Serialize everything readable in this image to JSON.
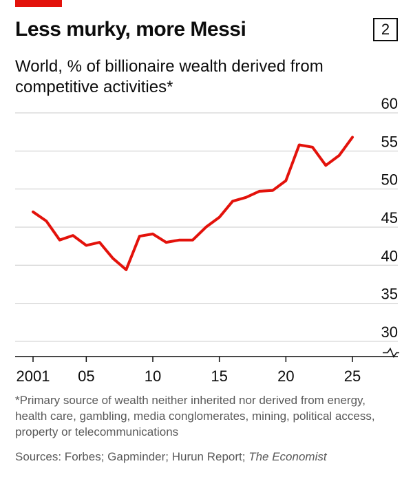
{
  "header": {
    "title": "Less murky, more Messi",
    "figure_number": "2",
    "subtitle": "World, % of billionaire wealth derived from competitive activities*"
  },
  "footer": {
    "footnote": "*Primary source of wealth neither inherited nor derived from energy, health care, gambling, media conglomerates, mining, political access, property or telecommunications",
    "sources_prefix": "Sources: Forbes; Gapminder; Hurun Report; ",
    "sources_publication": "The Economist"
  },
  "colors": {
    "line": "#e3120b",
    "grid": "#c9c9c9",
    "axis": "#0c0c0c",
    "accent": "#e3120b"
  },
  "chart_data": {
    "type": "line",
    "title": "Less murky, more Messi",
    "subtitle": "World, % of billionaire wealth derived from competitive activities*",
    "xlabel": "",
    "ylabel": "",
    "x": [
      2001,
      2002,
      2003,
      2004,
      2005,
      2006,
      2007,
      2008,
      2009,
      2010,
      2011,
      2012,
      2013,
      2014,
      2015,
      2016,
      2017,
      2018,
      2019,
      2020,
      2021,
      2022,
      2023,
      2024,
      2025
    ],
    "series": [
      {
        "values": [
          47.0,
          45.8,
          43.3,
          43.9,
          42.6,
          43.0,
          40.9,
          39.4,
          43.8,
          44.1,
          43.0,
          43.3,
          43.3,
          45.0,
          46.3,
          48.4,
          48.9,
          49.7,
          49.8,
          51.1,
          55.8,
          55.5,
          53.1,
          54.4,
          56.8
        ]
      }
    ],
    "ylim": [
      28,
      60
    ],
    "y_ticks": [
      60,
      55,
      50,
      45,
      40,
      35,
      30
    ],
    "y_tick_labels": [
      "60",
      "55",
      "50",
      "45",
      "40",
      "35",
      "30"
    ],
    "axis_break": true,
    "x_ticks": [
      2001,
      2005,
      2010,
      2015,
      2020,
      2025
    ],
    "x_tick_labels": [
      "2001",
      "05",
      "10",
      "15",
      "20",
      "25"
    ],
    "y_axis_position": "right",
    "grid": true,
    "legend": "none"
  }
}
